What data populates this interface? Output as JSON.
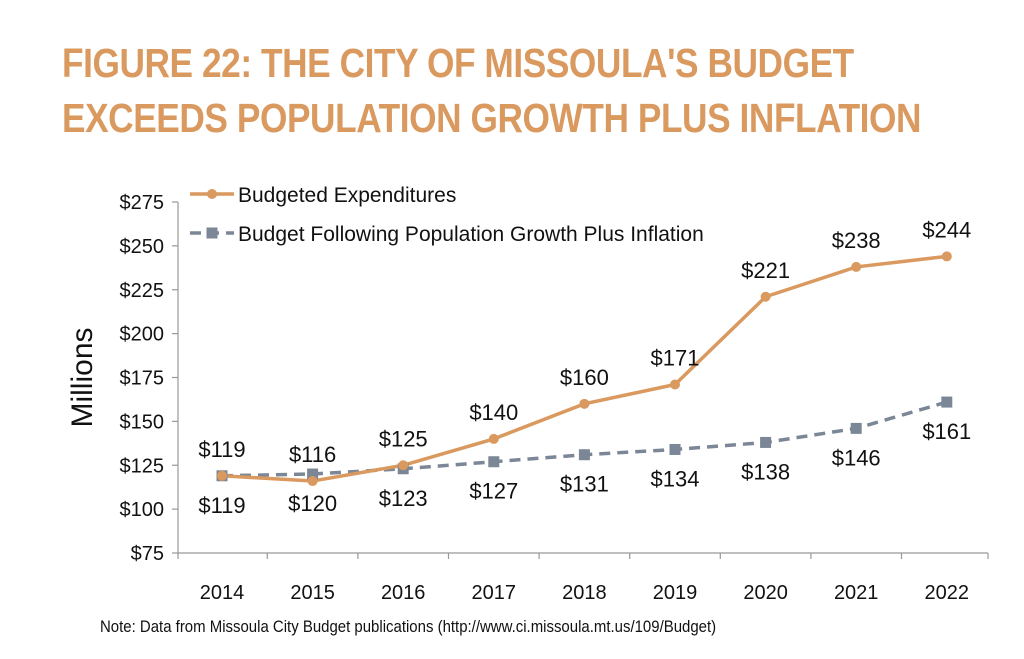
{
  "title_lines": [
    "FIGURE 22: THE CITY OF MISSOULA'S BUDGET",
    "EXCEEDS POPULATION GROWTH PLUS INFLATION"
  ],
  "note": "Note: Data from Missoula City Budget publications (http://www.ci.missoula.mt.us/109/Budget)",
  "colors": {
    "title": "#d9995f",
    "series_budgeted": "#d9995f",
    "series_population": "#7b8796",
    "axis": "#999999",
    "text": "#111111"
  },
  "chart_data": {
    "type": "line",
    "x": [
      "2014",
      "2015",
      "2016",
      "2017",
      "2018",
      "2019",
      "2020",
      "2021",
      "2022"
    ],
    "ylabel": "Millions",
    "ylim": [
      75,
      275
    ],
    "yticks": [
      75,
      100,
      125,
      150,
      175,
      200,
      225,
      250,
      275
    ],
    "ytick_labels": [
      "$75",
      "$100",
      "$125",
      "$150",
      "$175",
      "$200",
      "$225",
      "$250",
      "$275"
    ],
    "grid": false,
    "legend_position": "top-left",
    "series": [
      {
        "name": "Budgeted Expenditures",
        "marker": "circle",
        "line_style": "solid",
        "values": [
          119,
          116,
          125,
          140,
          160,
          171,
          221,
          238,
          244
        ],
        "labels": [
          "$119",
          "$116",
          "$125",
          "$140",
          "$160",
          "$171",
          "$221",
          "$238",
          "$244"
        ]
      },
      {
        "name": "Budget Following Population Growth Plus Inflation",
        "marker": "square",
        "line_style": "dashed",
        "values": [
          119,
          120,
          123,
          127,
          131,
          134,
          138,
          146,
          161
        ],
        "labels": [
          "$119",
          "$120",
          "$123",
          "$127",
          "$131",
          "$134",
          "$138",
          "$146",
          "$161"
        ]
      }
    ]
  }
}
